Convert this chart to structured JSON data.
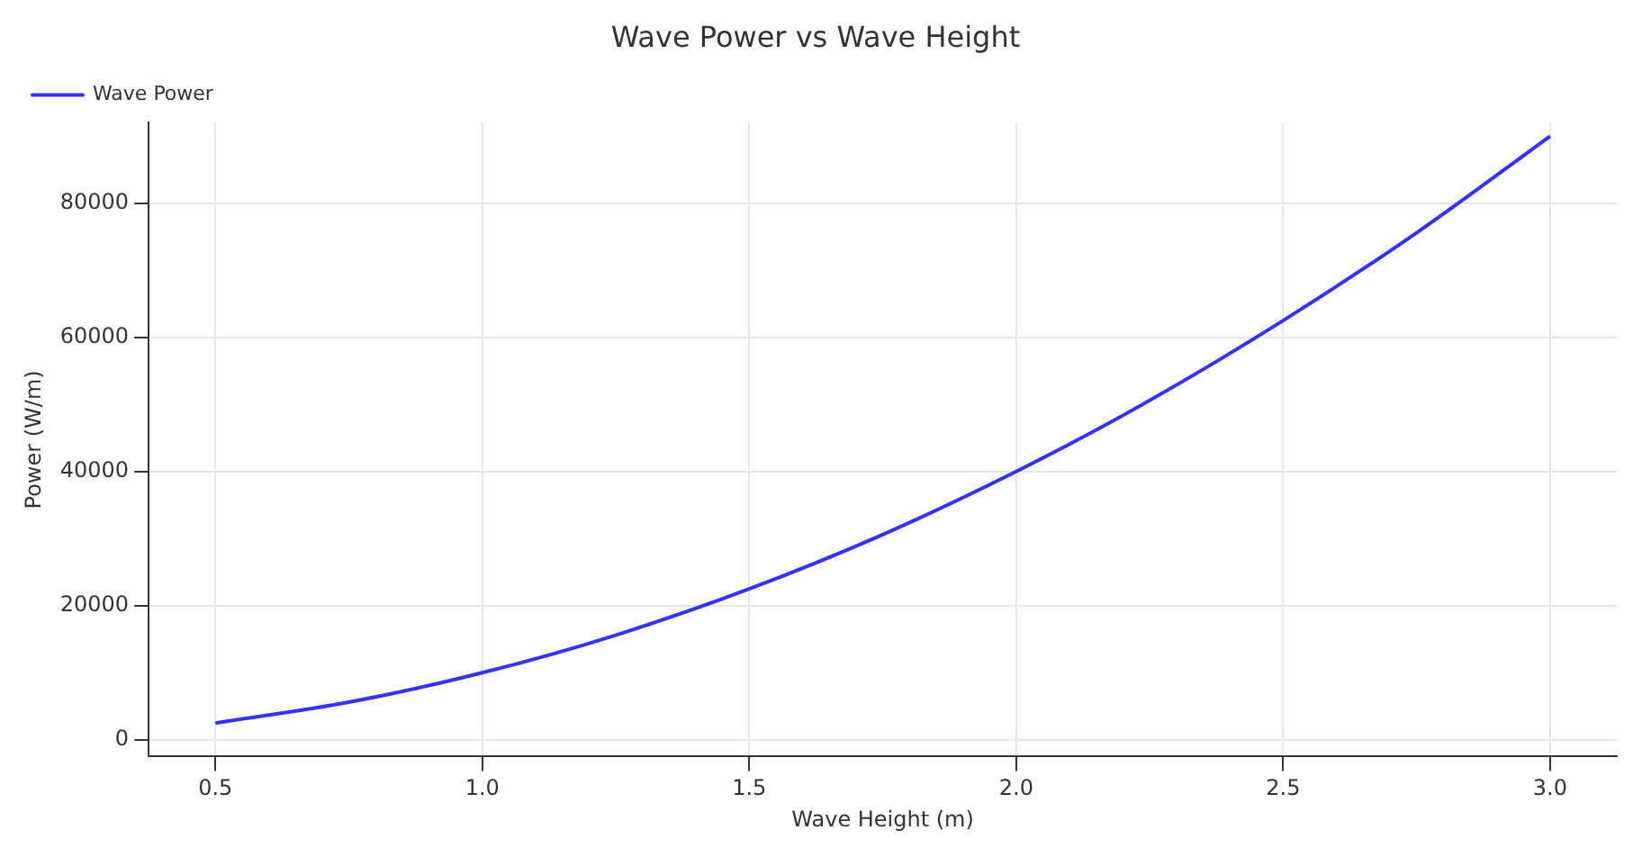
{
  "chart_data": {
    "type": "line",
    "title": "Wave Power vs Wave Height",
    "xlabel": "Wave Height (m)",
    "ylabel": "Power (W/m)",
    "x": [
      0.5,
      0.75,
      1.0,
      1.25,
      1.5,
      1.75,
      2.0,
      2.25,
      2.5,
      2.75,
      3.0
    ],
    "series": [
      {
        "name": "Wave Power",
        "color": "#3333ff",
        "values": [
          2500,
          5600,
          10000,
          15600,
          22500,
          30600,
          40000,
          50600,
          62500,
          75600,
          90000
        ]
      }
    ],
    "xlim": [
      0.375,
      3.125
    ],
    "xticks": [
      {
        "value": 0.5,
        "label": "0.5"
      },
      {
        "value": 1,
        "label": "1.0"
      },
      {
        "value": 1.5,
        "label": "1.5"
      },
      {
        "value": 2,
        "label": "2.0"
      },
      {
        "value": 2.5,
        "label": "2.5"
      },
      {
        "value": 3,
        "label": "3.0"
      }
    ],
    "ylim": [
      -2500,
      92000
    ],
    "yticks": [
      0,
      20000,
      40000,
      60000,
      80000
    ],
    "grid": true,
    "legend": "top left",
    "marker": "none",
    "line_style": "solid"
  }
}
